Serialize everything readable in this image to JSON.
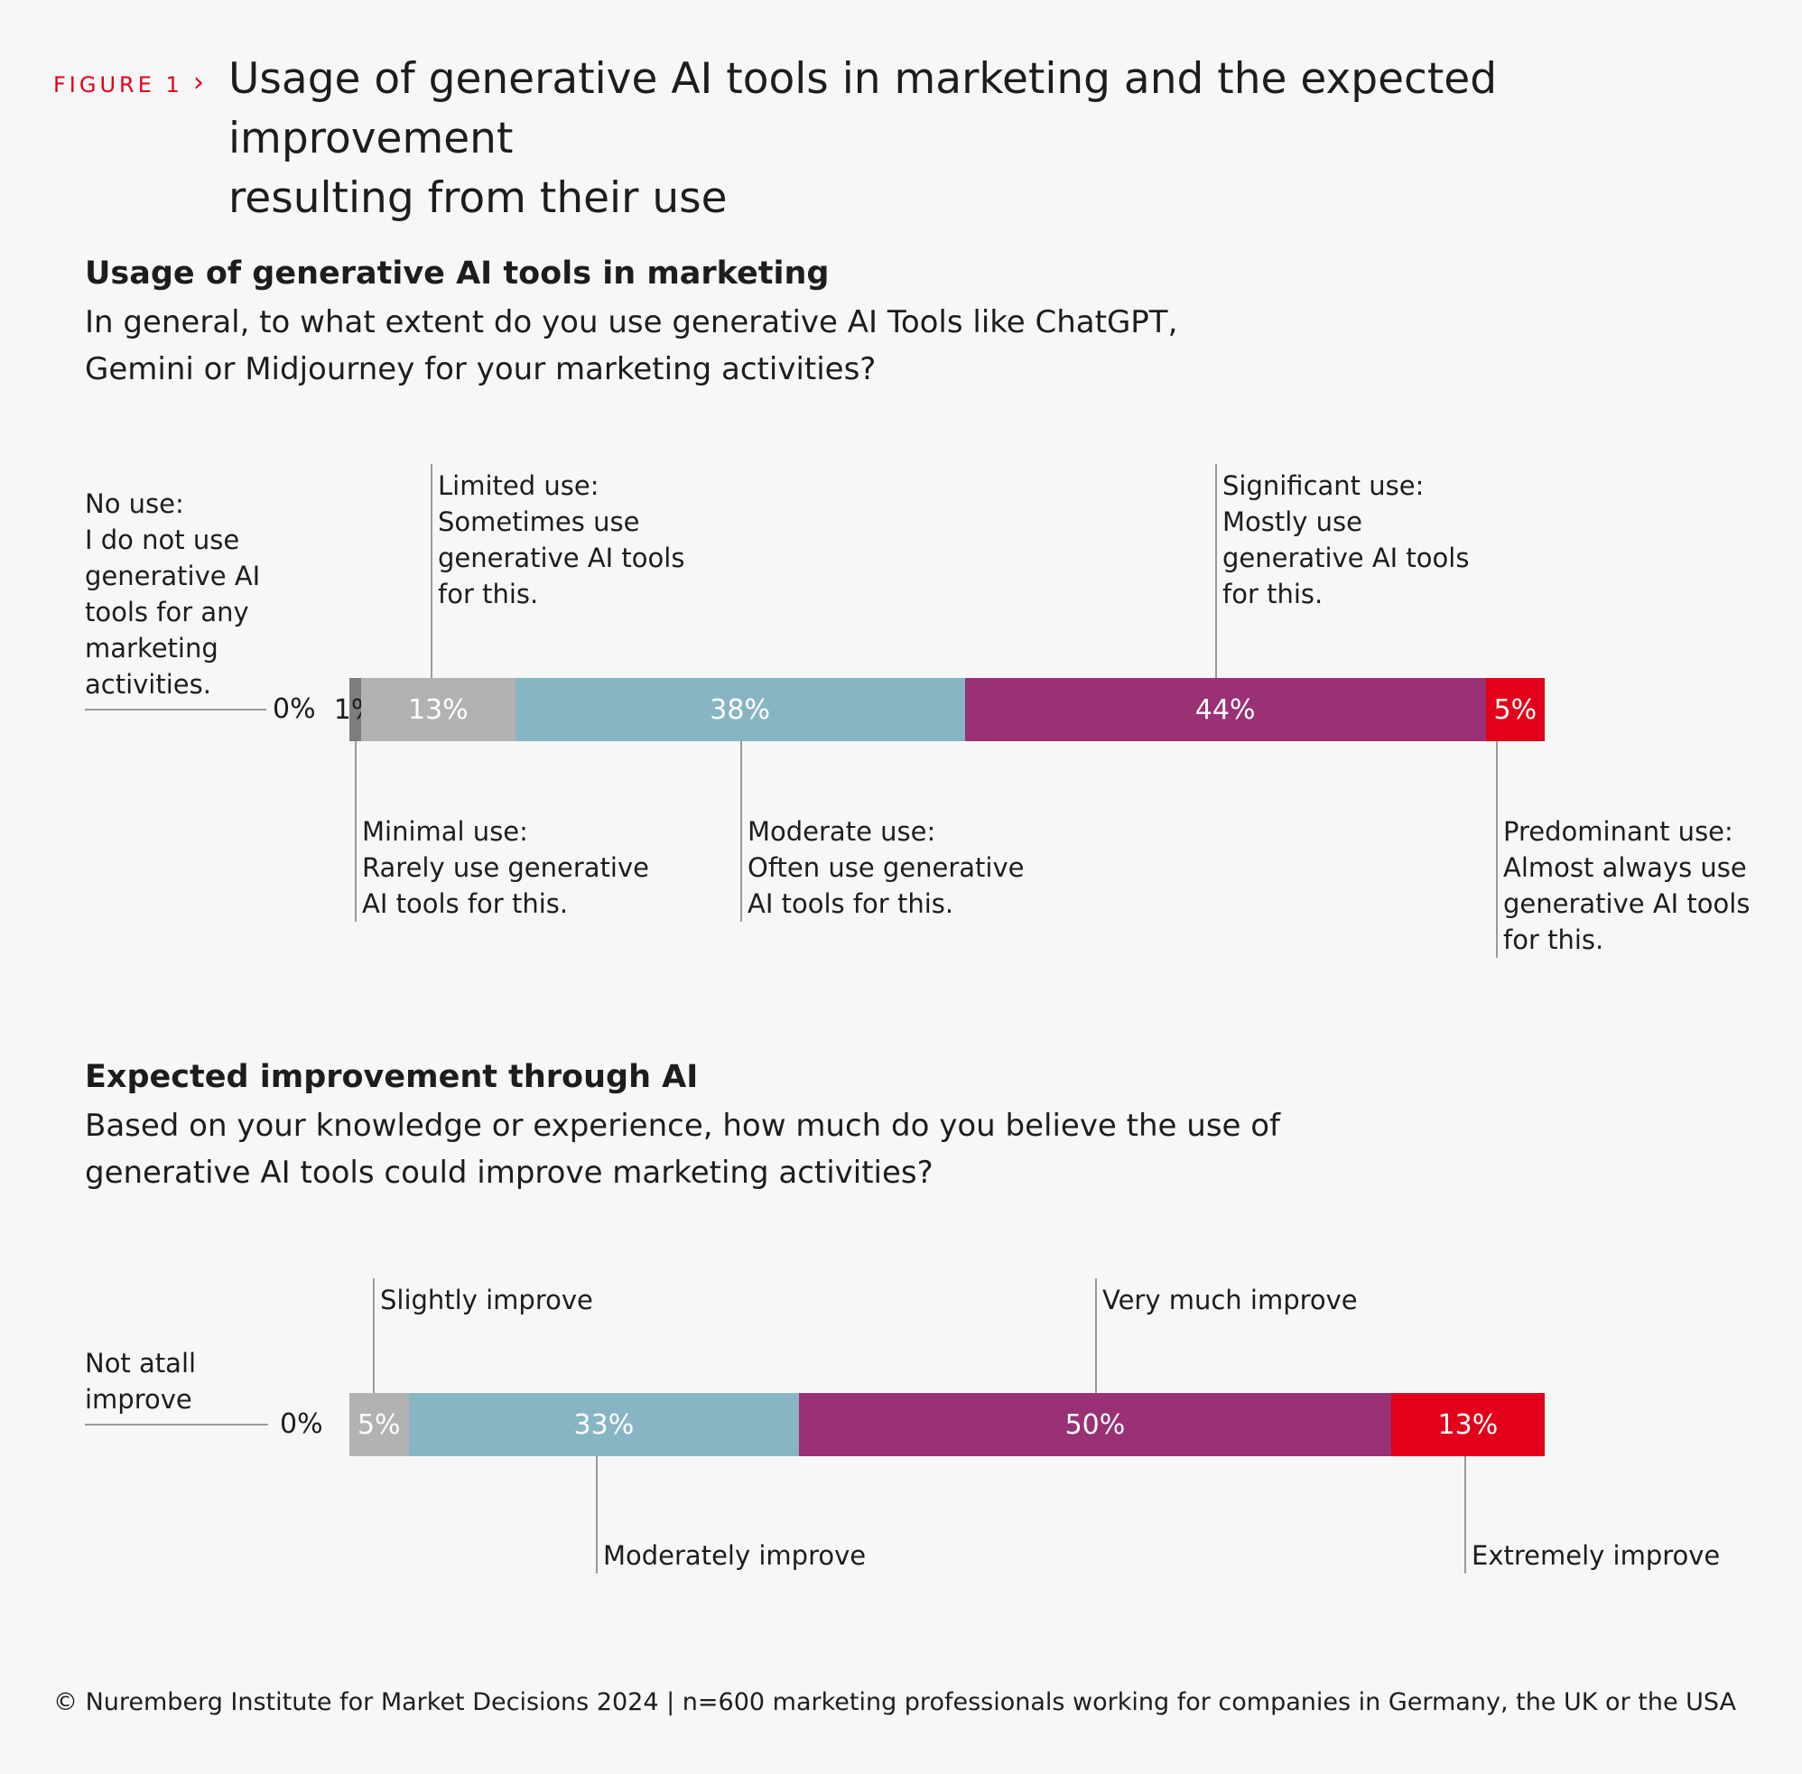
{
  "figure": {
    "label": "FIGURE 1",
    "title_line1": "Usage of generative AI tools in marketing and the expected improvement",
    "title_line2": "resulting from their use"
  },
  "colors": {
    "accent": "#e2001a",
    "none": "#7d7d7d",
    "light": "#b1b2b1",
    "moderate": "#88b5c4",
    "significant": "#993174",
    "predominant": "#e2001a",
    "leader": "#9a9a9a"
  },
  "section1": {
    "title": "Usage of generative AI tools in marketing",
    "question_line1": "In general, to what extent do you use generative AI Tools like ChatGPT,",
    "question_line2": "Gemini or Midjourney for your marketing activities?",
    "zero_label": "0%",
    "categories": [
      {
        "lines": [
          "No use:",
          "I do not use",
          "generative AI",
          "tools for any",
          "marketing",
          "activities."
        ]
      },
      {
        "lines": [
          "Minimal use:",
          "Rarely use generative",
          "AI tools for this."
        ]
      },
      {
        "lines": [
          "Limited use:",
          "Sometimes use",
          "generative AI tools",
          "for this."
        ]
      },
      {
        "lines": [
          "Moderate use:",
          "Often use generative",
          "AI tools for this."
        ]
      },
      {
        "lines": [
          "Significant use:",
          "Mostly use",
          "generative AI tools",
          "for this."
        ]
      },
      {
        "lines": [
          "Predominant use:",
          "Almost always use",
          "generative AI tools",
          "for this."
        ]
      }
    ]
  },
  "section2": {
    "title": "Expected improvement through AI",
    "question_line1": "Based on your knowledge or experience, how much do you believe the use of",
    "question_line2": "generative AI tools could improve marketing activities?",
    "zero_label": "0%",
    "categories": [
      {
        "lines": [
          "Not atall",
          "improve"
        ]
      },
      {
        "lines": [
          "Slightly improve"
        ]
      },
      {
        "lines": [
          "Moderately improve"
        ]
      },
      {
        "lines": [
          "Very much improve"
        ]
      },
      {
        "lines": [
          "Extremely improve"
        ]
      }
    ]
  },
  "chart_data": [
    {
      "type": "bar",
      "stacked": true,
      "orientation": "horizontal",
      "title": "Usage of generative AI tools in marketing",
      "categories": [
        "No use",
        "Minimal use",
        "Limited use",
        "Moderate use",
        "Significant use",
        "Predominant use"
      ],
      "values": [
        0,
        1,
        13,
        38,
        44,
        5
      ],
      "labels": [
        "0%",
        "1%",
        "13%",
        "38%",
        "44%",
        "5%"
      ],
      "unit": "%"
    },
    {
      "type": "bar",
      "stacked": true,
      "orientation": "horizontal",
      "title": "Expected improvement through AI",
      "categories": [
        "Not atall improve",
        "Slightly improve",
        "Moderately improve",
        "Very much improve",
        "Extremely improve"
      ],
      "values": [
        0,
        5,
        33,
        50,
        13
      ],
      "labels": [
        "0%",
        "5%",
        "33%",
        "50%",
        "13%"
      ],
      "unit": "%"
    }
  ],
  "footer": "© Nuremberg Institute for Market Decisions 2024 | n=600 marketing professionals working for companies in Germany, the UK or the USA"
}
